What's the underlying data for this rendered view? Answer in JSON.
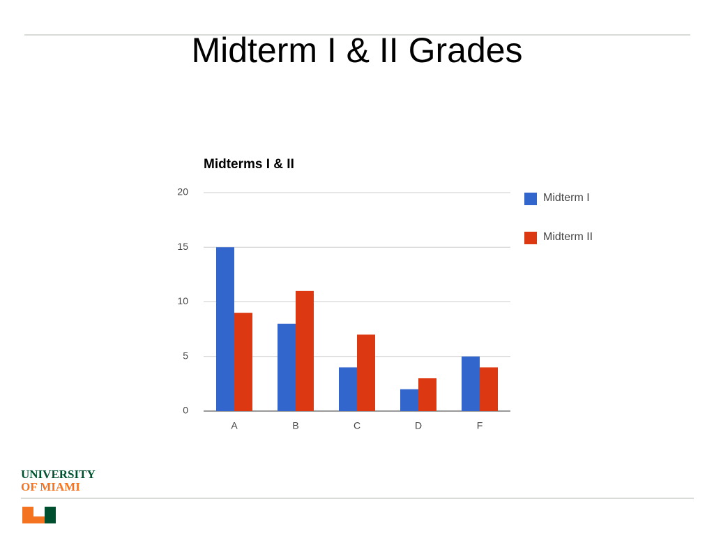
{
  "title": "Midterm I & II Grades",
  "logo": {
    "line1": "UNIVERSITY",
    "line2": "OF MIAMI"
  },
  "chart_data": {
    "type": "bar",
    "title": "Midterms I & II",
    "categories": [
      "A",
      "B",
      "C",
      "D",
      "F"
    ],
    "series": [
      {
        "name": "Midterm I",
        "color": "#3366cc",
        "values": [
          15,
          8,
          4,
          2,
          5
        ]
      },
      {
        "name": "Midterm II",
        "color": "#dc3912",
        "values": [
          9,
          11,
          7,
          3,
          4
        ]
      }
    ],
    "ylim": [
      0,
      20
    ],
    "yticks": [
      0,
      5,
      10,
      15,
      20
    ],
    "grid": true,
    "legend": "right"
  }
}
